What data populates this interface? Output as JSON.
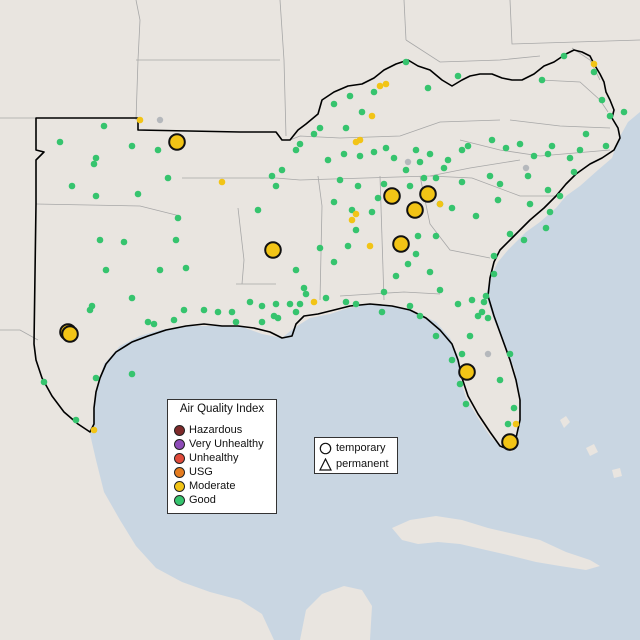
{
  "colors": {
    "water": "#c9d6e2",
    "land": "#e9e5e0",
    "region_outline": "#000000",
    "state_border": "#a7a7a7"
  },
  "legend": {
    "title": "Air Quality Index",
    "items": [
      {
        "label": "Hazardous",
        "color": "#7e2a2a"
      },
      {
        "label": "Very Unhealthy",
        "color": "#8e4cb8"
      },
      {
        "label": "Unhealthy",
        "color": "#e04a3a"
      },
      {
        "label": "USG",
        "color": "#e57c1f"
      },
      {
        "label": "Moderate",
        "color": "#f2c416"
      },
      {
        "label": "Good",
        "color": "#36c46e"
      }
    ]
  },
  "shape_legend": {
    "items": [
      {
        "label": "temporary",
        "shape": "circle-outline-icon"
      },
      {
        "label": "permanent",
        "shape": "triangle-outline-icon"
      }
    ]
  },
  "large_moderate_monitors": 11
}
